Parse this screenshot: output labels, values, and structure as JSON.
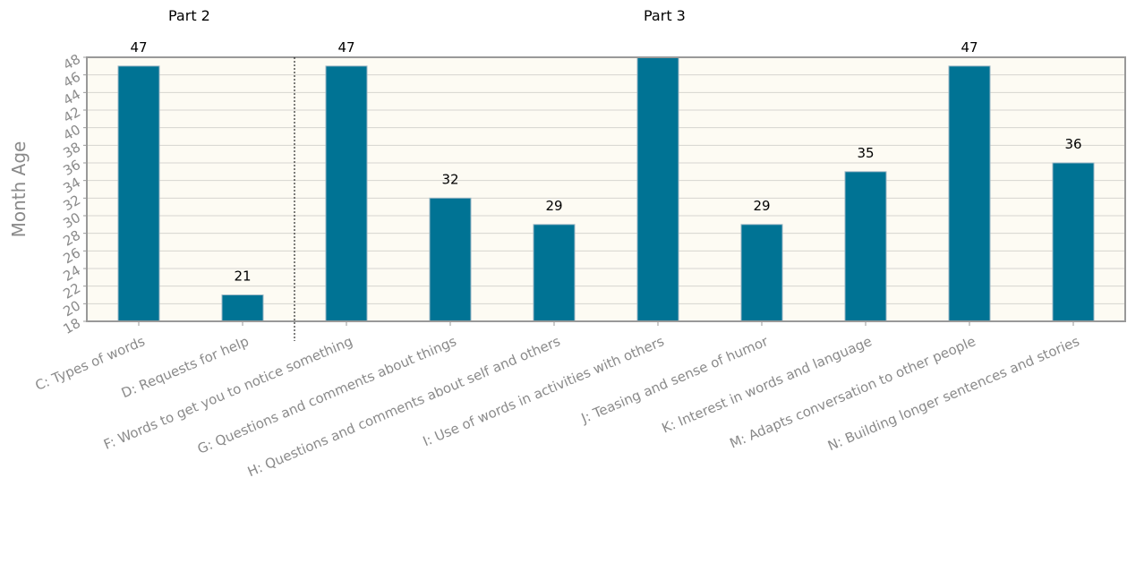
{
  "chart_data": {
    "type": "bar",
    "title": "",
    "xlabel": "",
    "ylabel": "Month Age",
    "ylim": [
      18,
      48
    ],
    "y_ticks": [
      18,
      20,
      22,
      24,
      26,
      28,
      30,
      32,
      34,
      36,
      38,
      40,
      42,
      44,
      46,
      48
    ],
    "grid": true,
    "legend": "none",
    "sections": [
      {
        "label": "Part 2",
        "start_index": 0,
        "end_index": 1
      },
      {
        "label": "Part 3",
        "start_index": 2,
        "end_index": 9
      }
    ],
    "categories": [
      "C: Types of words",
      "D: Requests for help",
      "F: Words to get you to notice something",
      "G: Questions and comments about things",
      "H: Questions and comments about self and others",
      "I: Use of words in activities with others",
      "J: Teasing and sense of humor",
      "K: Interest in words and language",
      "M: Adapts conversation to other people",
      "N: Building longer sentences and stories"
    ],
    "values": [
      47,
      21,
      47,
      32,
      29,
      48,
      29,
      35,
      47,
      36
    ],
    "data_labels": [
      "47",
      "21",
      "47",
      "32",
      "29",
      "",
      "29",
      "35",
      "47",
      "36"
    ],
    "colors": {
      "bar": "#007394",
      "plot_bg": "#fdfbf3",
      "grid": "#d6d6d0",
      "axis": "#999999",
      "tick_text": "#8a8a8a"
    }
  }
}
